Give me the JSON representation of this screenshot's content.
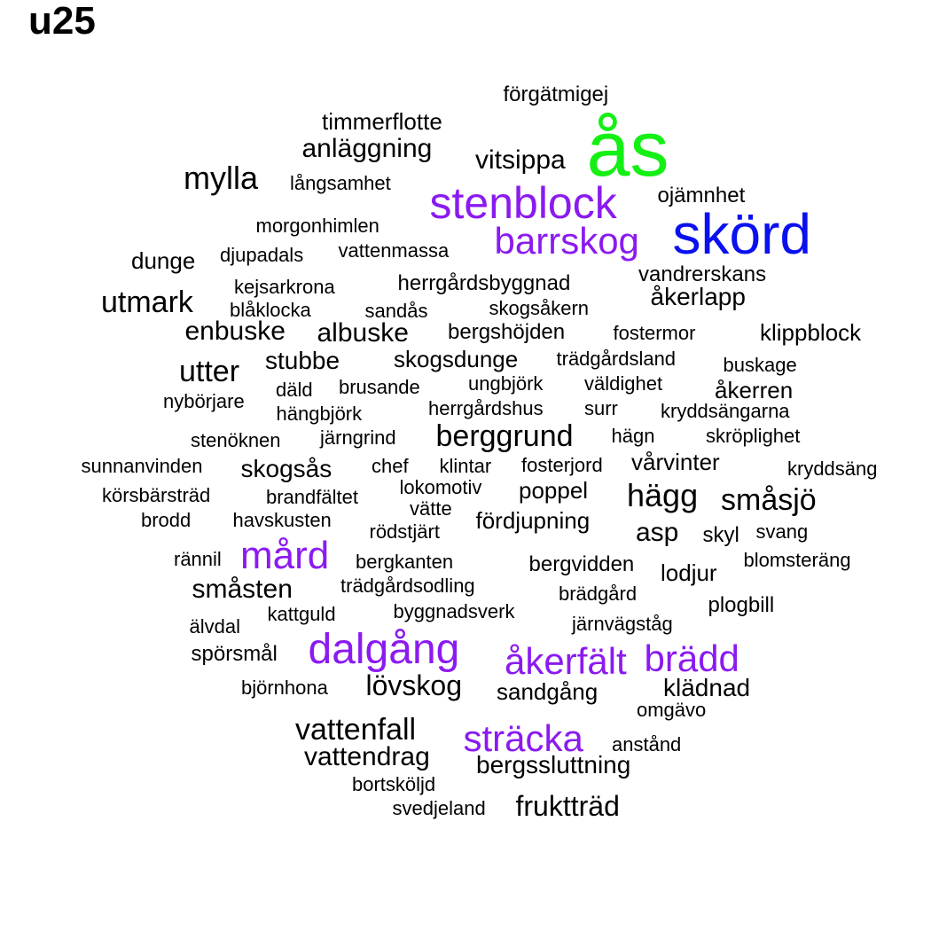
{
  "title": "u25",
  "colors": {
    "black": "#000000",
    "purple": "#8B1AF0",
    "blue": "#0A10F0",
    "green": "#14F014"
  },
  "words": [
    {
      "text": "ås",
      "color": "green"
    },
    {
      "text": "skörd",
      "color": "blue"
    },
    {
      "text": "stenblock",
      "color": "purple"
    },
    {
      "text": "barrskog",
      "color": "purple"
    },
    {
      "text": "mård",
      "color": "purple"
    },
    {
      "text": "dalgång",
      "color": "purple"
    },
    {
      "text": "åkerfält",
      "color": "purple"
    },
    {
      "text": "brädd",
      "color": "purple"
    },
    {
      "text": "sträcka",
      "color": "purple"
    },
    {
      "text": "förgätmigej",
      "color": "black"
    },
    {
      "text": "timmerflotte",
      "color": "black"
    },
    {
      "text": "anläggning",
      "color": "black"
    },
    {
      "text": "vitsippa",
      "color": "black"
    },
    {
      "text": "mylla",
      "color": "black"
    },
    {
      "text": "långsamhet",
      "color": "black"
    },
    {
      "text": "ojämnhet",
      "color": "black"
    },
    {
      "text": "morgonhimlen",
      "color": "black"
    },
    {
      "text": "dunge",
      "color": "black"
    },
    {
      "text": "djupadals",
      "color": "black"
    },
    {
      "text": "vattenmassa",
      "color": "black"
    },
    {
      "text": "vandrerskans",
      "color": "black"
    },
    {
      "text": "kejsarkrona",
      "color": "black"
    },
    {
      "text": "herrgårdsbyggnad",
      "color": "black"
    },
    {
      "text": "åkerlapp",
      "color": "black"
    },
    {
      "text": "utmark",
      "color": "black"
    },
    {
      "text": "blåklocka",
      "color": "black"
    },
    {
      "text": "sandås",
      "color": "black"
    },
    {
      "text": "skogsåkern",
      "color": "black"
    },
    {
      "text": "enbuske",
      "color": "black"
    },
    {
      "text": "albuske",
      "color": "black"
    },
    {
      "text": "bergshöjden",
      "color": "black"
    },
    {
      "text": "fostermor",
      "color": "black"
    },
    {
      "text": "klippblock",
      "color": "black"
    },
    {
      "text": "utter",
      "color": "black"
    },
    {
      "text": "stubbe",
      "color": "black"
    },
    {
      "text": "skogsdunge",
      "color": "black"
    },
    {
      "text": "trädgårdsland",
      "color": "black"
    },
    {
      "text": "buskage",
      "color": "black"
    },
    {
      "text": "däld",
      "color": "black"
    },
    {
      "text": "brusande",
      "color": "black"
    },
    {
      "text": "ungbjörk",
      "color": "black"
    },
    {
      "text": "väldighet",
      "color": "black"
    },
    {
      "text": "åkerren",
      "color": "black"
    },
    {
      "text": "nybörjare",
      "color": "black"
    },
    {
      "text": "hängbjörk",
      "color": "black"
    },
    {
      "text": "herrgårdshus",
      "color": "black"
    },
    {
      "text": "surr",
      "color": "black"
    },
    {
      "text": "kryddsängarna",
      "color": "black"
    },
    {
      "text": "stenöknen",
      "color": "black"
    },
    {
      "text": "järngrind",
      "color": "black"
    },
    {
      "text": "berggrund",
      "color": "black"
    },
    {
      "text": "hägn",
      "color": "black"
    },
    {
      "text": "skröplighet",
      "color": "black"
    },
    {
      "text": "sunnanvinden",
      "color": "black"
    },
    {
      "text": "skogsås",
      "color": "black"
    },
    {
      "text": "chef",
      "color": "black"
    },
    {
      "text": "klintar",
      "color": "black"
    },
    {
      "text": "fosterjord",
      "color": "black"
    },
    {
      "text": "vårvinter",
      "color": "black"
    },
    {
      "text": "kryddsäng",
      "color": "black"
    },
    {
      "text": "körsbärsträd",
      "color": "black"
    },
    {
      "text": "brandfältet",
      "color": "black"
    },
    {
      "text": "lokomotiv",
      "color": "black"
    },
    {
      "text": "poppel",
      "color": "black"
    },
    {
      "text": "hägg",
      "color": "black"
    },
    {
      "text": "småsjö",
      "color": "black"
    },
    {
      "text": "vätte",
      "color": "black"
    },
    {
      "text": "brodd",
      "color": "black"
    },
    {
      "text": "havskusten",
      "color": "black"
    },
    {
      "text": "fördjupning",
      "color": "black"
    },
    {
      "text": "rödstjärt",
      "color": "black"
    },
    {
      "text": "asp",
      "color": "black"
    },
    {
      "text": "skyl",
      "color": "black"
    },
    {
      "text": "svang",
      "color": "black"
    },
    {
      "text": "rännil",
      "color": "black"
    },
    {
      "text": "bergkanten",
      "color": "black"
    },
    {
      "text": "bergvidden",
      "color": "black"
    },
    {
      "text": "lodjur",
      "color": "black"
    },
    {
      "text": "blomsteräng",
      "color": "black"
    },
    {
      "text": "småsten",
      "color": "black"
    },
    {
      "text": "trädgårdsodling",
      "color": "black"
    },
    {
      "text": "brädgård",
      "color": "black"
    },
    {
      "text": "plogbill",
      "color": "black"
    },
    {
      "text": "kattguld",
      "color": "black"
    },
    {
      "text": "byggnadsverk",
      "color": "black"
    },
    {
      "text": "älvdal",
      "color": "black"
    },
    {
      "text": "järnvägståg",
      "color": "black"
    },
    {
      "text": "spörsmål",
      "color": "black"
    },
    {
      "text": "björnhona",
      "color": "black"
    },
    {
      "text": "lövskog",
      "color": "black"
    },
    {
      "text": "sandgång",
      "color": "black"
    },
    {
      "text": "klädnad",
      "color": "black"
    },
    {
      "text": "omgävo",
      "color": "black"
    },
    {
      "text": "vattenfall",
      "color": "black"
    },
    {
      "text": "anstånd",
      "color": "black"
    },
    {
      "text": "vattendrag",
      "color": "black"
    },
    {
      "text": "bergssluttning",
      "color": "black"
    },
    {
      "text": "bortsköljd",
      "color": "black"
    },
    {
      "text": "svedjeland",
      "color": "black"
    },
    {
      "text": "fruktträd",
      "color": "black"
    }
  ]
}
